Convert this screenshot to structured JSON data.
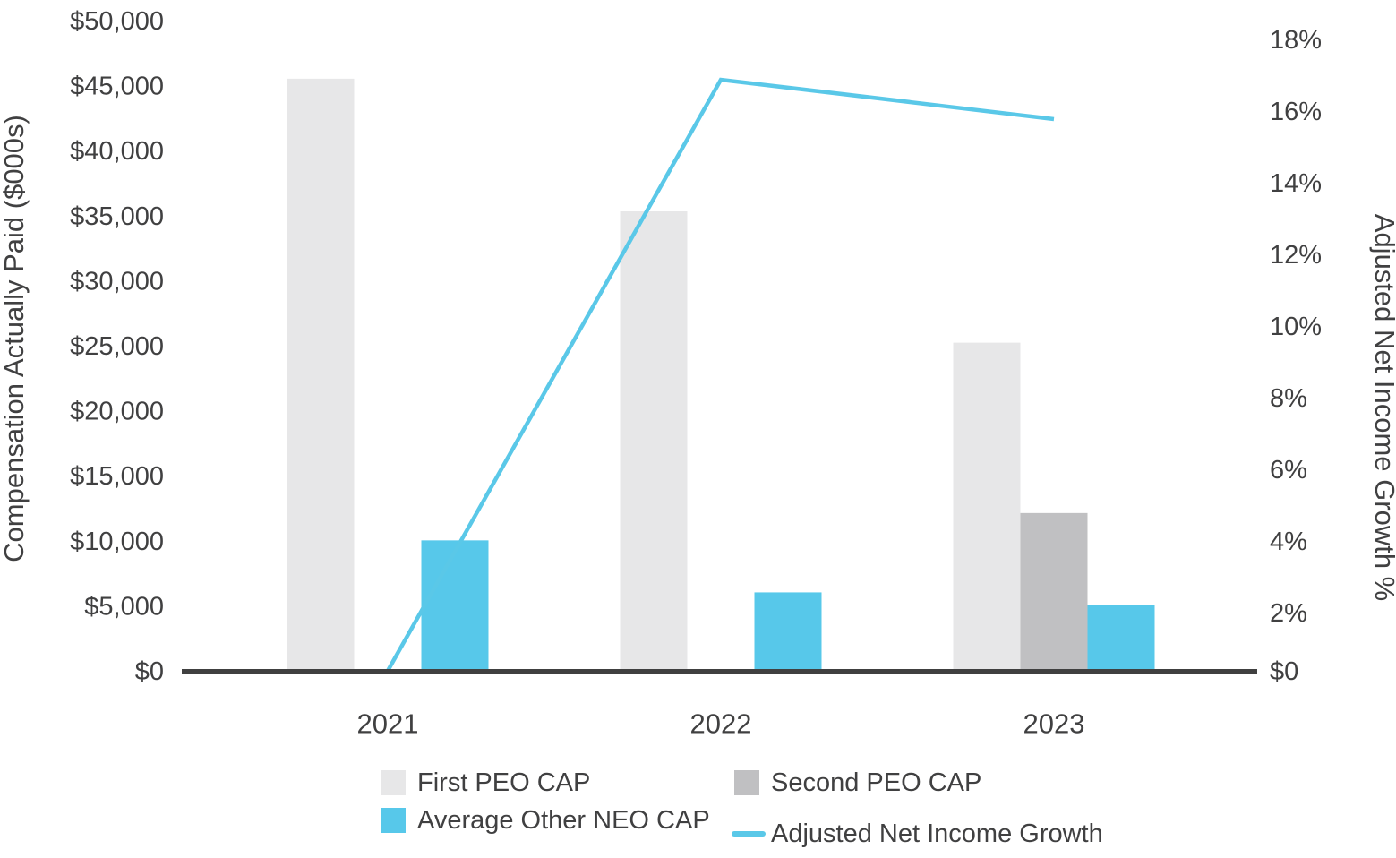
{
  "chart_data": {
    "type": "combo-bar-line",
    "categories": [
      "2021",
      "2022",
      "2023"
    ],
    "series": [
      {
        "name": "First PEO CAP",
        "type": "bar",
        "axis": "left",
        "color": "#e7e7e8",
        "values": [
          45600,
          35400,
          25300
        ]
      },
      {
        "name": "Second PEO CAP",
        "type": "bar",
        "axis": "left",
        "color": "#c0c0c2",
        "values": [
          null,
          null,
          12200
        ]
      },
      {
        "name": "Average Other NEO CAP",
        "type": "bar",
        "axis": "left",
        "color": "#57c8ea",
        "values": [
          10100,
          6100,
          5100
        ]
      },
      {
        "name": "Adjusted Net Income Growth",
        "type": "line",
        "axis": "right",
        "color": "#5ac8e8",
        "values": [
          0.4,
          16.9,
          15.8
        ]
      }
    ],
    "left_axis": {
      "title": "Compensation Actually Paid ($000s)",
      "min": 0,
      "max": 50000,
      "step": 5000,
      "tick_values": [
        0,
        5000,
        10000,
        15000,
        20000,
        25000,
        30000,
        35000,
        40000,
        45000,
        50000
      ],
      "tick_labels": [
        "$0",
        "$5,000",
        "$10,000",
        "$15,000",
        "$20,000",
        "$25,000",
        "$30,000",
        "$35,000",
        "$40,000",
        "$45,000",
        "$50,000"
      ]
    },
    "right_axis": {
      "title": "Adjusted Net Income Growth %",
      "min": 0,
      "max": 18,
      "step": 2,
      "tick_values": [
        0,
        2,
        4,
        6,
        8,
        10,
        12,
        14,
        16,
        18
      ],
      "tick_labels": [
        "$0",
        "2%",
        "4%",
        "6%",
        "8%",
        "10%",
        "12%",
        "14%",
        "16%",
        "18%"
      ]
    },
    "legend": [
      {
        "label": "First PEO CAP",
        "swatch": "square",
        "color": "#e7e7e8",
        "col": 0,
        "row": 0
      },
      {
        "label": "Second PEO CAP",
        "swatch": "square",
        "color": "#c0c0c2",
        "col": 1,
        "row": 0
      },
      {
        "label": "Average Other NEO CAP",
        "swatch": "square",
        "color": "#57c8ea",
        "col": 0,
        "row": 1
      },
      {
        "label": "Adjusted Net Income Growth",
        "swatch": "line",
        "color": "#5ac8e8",
        "col": 1,
        "row": 1
      }
    ],
    "grid": false,
    "legend_position": "bottom",
    "colors": {
      "axis_line": "#404040",
      "text": "#404041",
      "background": "#ffffff"
    }
  }
}
